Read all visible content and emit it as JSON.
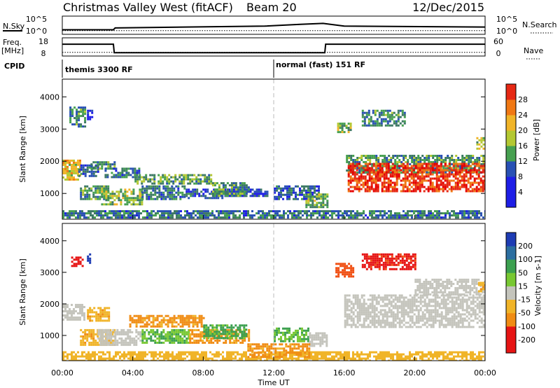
{
  "header": {
    "title": "Christmas Valley West (fitACF)",
    "beam": "Beam 20",
    "date": "12/Dec/2015"
  },
  "nsky_panel": {
    "left_label": "N.Sky",
    "right_label": "N.Search",
    "left_ticks": [
      "10^5",
      "10^0"
    ],
    "right_ticks": [
      "10^5",
      "10^0"
    ]
  },
  "freq_panel": {
    "left_label_line1": "Freq.",
    "left_label_line2": "[MHz]",
    "right_label": "Nave",
    "left_ticks": [
      "18",
      "8"
    ],
    "right_ticks": [
      "60",
      "0"
    ]
  },
  "cpid": {
    "label": "CPID",
    "segments": [
      {
        "name": "themis 3300 RF",
        "start_hour": 0
      },
      {
        "name": "normal (fast) 151 RF",
        "start_hour": 12
      }
    ]
  },
  "chart_data": [
    {
      "type": "line",
      "name": "nsky-nsearch",
      "x_range_hours": [
        0,
        24
      ],
      "series": [
        {
          "line": "N.Sky",
          "points": [
            [
              0,
              0.25
            ],
            [
              2.9,
              0.25
            ],
            [
              3.0,
              0.35
            ],
            [
              11.5,
              0.45
            ],
            [
              13.5,
              0.55
            ],
            [
              14.8,
              0.6
            ],
            [
              16.0,
              0.45
            ],
            [
              24,
              0.4
            ]
          ]
        },
        {
          "line": "N.Search",
          "points": [
            [
              0,
              0.2
            ],
            [
              24,
              0.2
            ]
          ]
        }
      ]
    },
    {
      "type": "line",
      "name": "freq-nave",
      "x_range_hours": [
        0,
        24
      ],
      "series": [
        {
          "line": "Freq",
          "points": [
            [
              0,
              14.5
            ],
            [
              2.9,
              14.5
            ],
            [
              2.95,
              9.8
            ],
            [
              14.9,
              9.8
            ],
            [
              14.95,
              14.5
            ],
            [
              24,
              14.5
            ]
          ]
        },
        {
          "line": "Nave",
          "points": [
            [
              0,
              12
            ],
            [
              24,
              12
            ]
          ]
        }
      ]
    },
    {
      "type": "heatmap",
      "name": "power",
      "ylabel": "Slant Range [km]",
      "y_ticks": [
        1000,
        2000,
        3000,
        4000
      ],
      "ylim": [
        200,
        4550
      ],
      "xlim_hours": [
        0,
        24
      ],
      "colorbar": {
        "label": "Power [dB]",
        "ticks": [
          "4",
          "8",
          "12",
          "16",
          "20",
          "24",
          "28"
        ],
        "range": [
          0,
          32
        ]
      },
      "regions": [
        {
          "x0": 0.0,
          "x1": 1.0,
          "y0": 1400,
          "y1": 2050,
          "value": 21
        },
        {
          "x0": 0.9,
          "x1": 2.0,
          "y0": 1550,
          "y1": 1900,
          "value": 10
        },
        {
          "x0": 1.6,
          "x1": 3.0,
          "y0": 1750,
          "y1": 2000,
          "value": 14
        },
        {
          "x0": 2.4,
          "x1": 4.4,
          "y0": 1500,
          "y1": 1800,
          "value": 12
        },
        {
          "x0": 1.0,
          "x1": 2.6,
          "y0": 800,
          "y1": 1250,
          "value": 14
        },
        {
          "x0": 2.2,
          "x1": 4.5,
          "y0": 650,
          "y1": 1150,
          "value": 17
        },
        {
          "x0": 4.5,
          "x1": 7.0,
          "y0": 850,
          "y1": 1250,
          "value": 12
        },
        {
          "x0": 7.0,
          "x1": 9.2,
          "y0": 850,
          "y1": 1150,
          "value": 10
        },
        {
          "x0": 9.2,
          "x1": 11.6,
          "y0": 900,
          "y1": 1150,
          "value": 8
        },
        {
          "x0": 4.1,
          "x1": 8.5,
          "y0": 1300,
          "y1": 1600,
          "value": 15
        },
        {
          "x0": 8.5,
          "x1": 10.6,
          "y0": 950,
          "y1": 1350,
          "value": 14
        },
        {
          "x0": 12.0,
          "x1": 14.6,
          "y0": 850,
          "y1": 1250,
          "value": 10
        },
        {
          "x0": 13.8,
          "x1": 15.0,
          "y0": 600,
          "y1": 1000,
          "value": 16
        },
        {
          "x0": 0.0,
          "x1": 24.0,
          "y0": 220,
          "y1": 480,
          "value": 12
        },
        {
          "x0": 0.4,
          "x1": 1.3,
          "y0": 3100,
          "y1": 3700,
          "value": 13
        },
        {
          "x0": 1.4,
          "x1": 1.7,
          "y0": 3300,
          "y1": 3600,
          "value": 6
        },
        {
          "x0": 15.6,
          "x1": 16.4,
          "y0": 2900,
          "y1": 3200,
          "value": 17
        },
        {
          "x0": 17.0,
          "x1": 19.5,
          "y0": 3100,
          "y1": 3600,
          "value": 13
        },
        {
          "x0": 16.1,
          "x1": 24.0,
          "y0": 1650,
          "y1": 2200,
          "value": 14
        },
        {
          "x0": 16.2,
          "x1": 24.0,
          "y0": 1050,
          "y1": 1950,
          "value": 30
        },
        {
          "x0": 23.5,
          "x1": 24.0,
          "y0": 2400,
          "y1": 2750,
          "value": 18
        }
      ]
    },
    {
      "type": "heatmap",
      "name": "velocity",
      "ylabel": "Slant Range [km]",
      "y_ticks": [
        1000,
        2000,
        3000,
        4000
      ],
      "ylim": [
        200,
        4550
      ],
      "xlim_hours": [
        0,
        24
      ],
      "xlabel": "Time UT",
      "x_ticks": [
        "00:00",
        "04:00",
        "08:00",
        "12:00",
        "16:00",
        "20:00",
        "00:00"
      ],
      "colorbar": {
        "label": "Velocity [m s-1]",
        "ticks": [
          "200",
          "100",
          "50",
          "15",
          "-15",
          "-50",
          "-100",
          "-200"
        ],
        "range": [
          -250,
          250
        ]
      },
      "regions": [
        {
          "x0": 0.0,
          "x1": 1.2,
          "y0": 1500,
          "y1": 2000,
          "value": 0
        },
        {
          "x0": 1.4,
          "x1": 2.6,
          "y0": 1500,
          "y1": 1900,
          "value": -40
        },
        {
          "x0": 1.0,
          "x1": 3.0,
          "y0": 700,
          "y1": 1200,
          "value": -40
        },
        {
          "x0": 2.0,
          "x1": 4.5,
          "y0": 700,
          "y1": 1200,
          "value": 0
        },
        {
          "x0": 4.5,
          "x1": 7.2,
          "y0": 800,
          "y1": 1200,
          "value": 30
        },
        {
          "x0": 7.2,
          "x1": 10.6,
          "y0": 800,
          "y1": 1200,
          "value": -60
        },
        {
          "x0": 3.8,
          "x1": 8.0,
          "y0": 1300,
          "y1": 1650,
          "value": -60
        },
        {
          "x0": 8.0,
          "x1": 10.5,
          "y0": 900,
          "y1": 1350,
          "value": 40
        },
        {
          "x0": 12.0,
          "x1": 14.0,
          "y0": 800,
          "y1": 1250,
          "value": 30
        },
        {
          "x0": 14.0,
          "x1": 15.0,
          "y0": 700,
          "y1": 1100,
          "value": 0
        },
        {
          "x0": 0.0,
          "x1": 24.0,
          "y0": 220,
          "y1": 500,
          "value": -30
        },
        {
          "x0": 10.5,
          "x1": 14.0,
          "y0": 300,
          "y1": 750,
          "value": -60
        },
        {
          "x0": 0.5,
          "x1": 1.2,
          "y0": 3200,
          "y1": 3500,
          "value": -170
        },
        {
          "x0": 1.4,
          "x1": 1.6,
          "y0": 3300,
          "y1": 3600,
          "value": 200
        },
        {
          "x0": 15.5,
          "x1": 16.5,
          "y0": 2900,
          "y1": 3300,
          "value": -120
        },
        {
          "x0": 17.0,
          "x1": 20.0,
          "y0": 3100,
          "y1": 3600,
          "value": -160
        },
        {
          "x0": 16.0,
          "x1": 24.0,
          "y0": 1300,
          "y1": 2300,
          "value": 0
        },
        {
          "x0": 20.0,
          "x1": 24.0,
          "y0": 2300,
          "y1": 2800,
          "value": 0
        },
        {
          "x0": 23.6,
          "x1": 24.0,
          "y0": 2400,
          "y1": 2700,
          "value": -40
        }
      ]
    }
  ]
}
